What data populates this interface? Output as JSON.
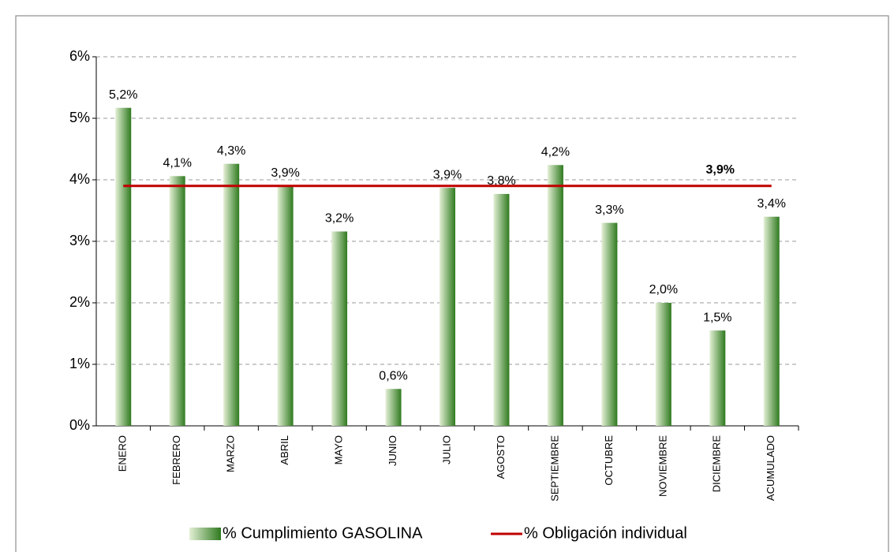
{
  "chart_data": {
    "type": "bar",
    "categories": [
      "ENERO",
      "FEBRERO",
      "MARZO",
      "ABRIL",
      "MAYO",
      "JUNIO",
      "JULIO",
      "AGOSTO",
      "SEPTIEMBRE",
      "OCTUBRE",
      "NOVIEMBRE",
      "DICIEMBRE",
      "ACUMULADO"
    ],
    "series": [
      {
        "name": "% Cumplimiento GASOLINA",
        "color": "#2f7a1f",
        "values": [
          5.17,
          4.06,
          4.26,
          3.9,
          3.16,
          0.6,
          3.87,
          3.77,
          4.24,
          3.3,
          2.0,
          1.55,
          3.4
        ],
        "value_labels": [
          "5,2%",
          "4,1%",
          "4,3%",
          "3,9%",
          "3,2%",
          "0,6%",
          "3,9%",
          "3,8%",
          "4,2%",
          "3,3%",
          "2,0%",
          "1,5%",
          "3,4%"
        ]
      }
    ],
    "reference_line": {
      "name": "% Obligación individual",
      "color": "#c00000",
      "value": 3.9,
      "value_label": "3,9%"
    },
    "ylim": [
      0,
      6
    ],
    "yticks": [
      {
        "value": 0,
        "label": "0%"
      },
      {
        "value": 1,
        "label": "1%"
      },
      {
        "value": 2,
        "label": "2%"
      },
      {
        "value": 3,
        "label": "3%"
      },
      {
        "value": 4,
        "label": "4%"
      },
      {
        "value": 5,
        "label": "5%"
      },
      {
        "value": 6,
        "label": "6%"
      }
    ],
    "grid": true,
    "legend": "bottom"
  }
}
